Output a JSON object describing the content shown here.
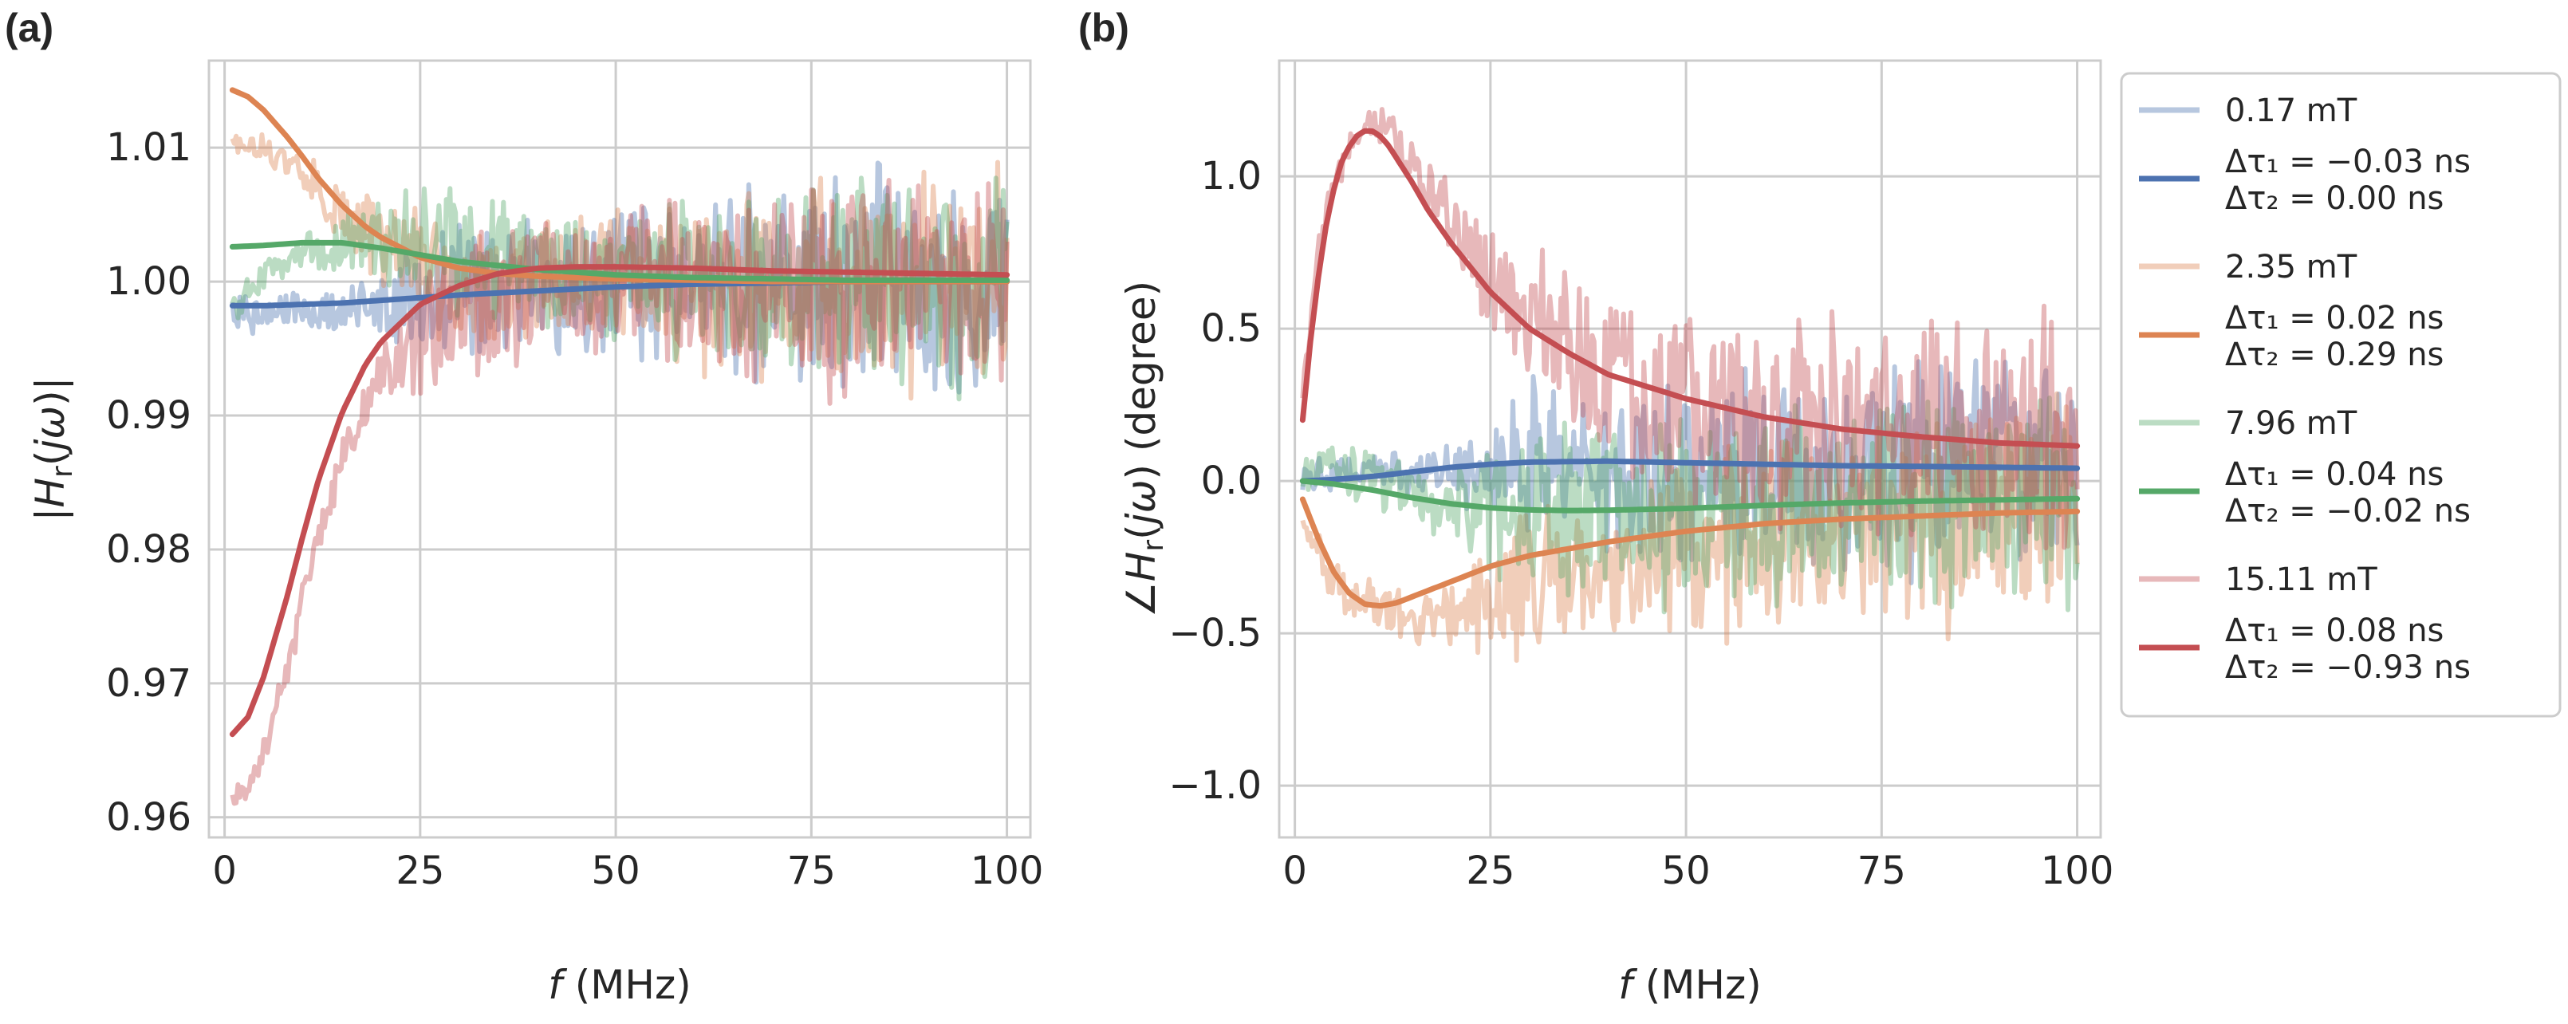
{
  "colors": {
    "blue": "#4c72b0",
    "orange": "#dd8452",
    "green": "#55a868",
    "red": "#c44e52",
    "grid": "#cccccc",
    "spine": "#cccccc"
  },
  "chart_data": [
    {
      "type": "line",
      "panel": "(a)",
      "xlabel": "f (MHz)",
      "ylabel": "|H_r(jω)|",
      "xlim": [
        -2,
        103
      ],
      "ylim": [
        0.9585,
        1.0165
      ],
      "xticks": [
        0,
        25,
        50,
        75,
        100
      ],
      "xtick_labels": [
        "0",
        "25",
        "50",
        "75",
        "100"
      ],
      "yticks": [
        0.96,
        0.97,
        0.98,
        0.99,
        1.0,
        1.01
      ],
      "ytick_labels": [
        "0.96",
        "0.97",
        "0.98",
        "0.99",
        "1.00",
        "1.01"
      ],
      "grid": true,
      "series": [
        {
          "name": "0.17 mT",
          "kind": "measured",
          "color": "blue",
          "x": [
            1,
            5,
            10,
            15,
            20,
            25,
            30,
            40,
            50,
            60,
            70,
            80,
            90,
            100
          ],
          "y": [
            0.998,
            0.9975,
            0.9978,
            0.998,
            0.998,
            0.999,
            0.999,
            0.9995,
            0.9998,
            1.0,
            1.0,
            1.0,
            1.0,
            1.0
          ],
          "noise": [
            0.0015,
            0.0015,
            0.0015,
            0.0015,
            0.002,
            0.0045,
            0.005,
            0.005,
            0.005,
            0.006,
            0.007,
            0.008,
            0.008,
            0.008
          ]
        },
        {
          "name": "Δτ₁ = −0.03 ns / Δτ₂ = 0.00 ns",
          "kind": "fit",
          "color": "blue",
          "x": [
            1,
            5,
            10,
            15,
            20,
            25,
            30,
            40,
            50,
            60,
            70,
            80,
            90,
            100
          ],
          "y": [
            0.9982,
            0.9982,
            0.9983,
            0.9984,
            0.9986,
            0.9988,
            0.999,
            0.9993,
            0.9996,
            0.9998,
            0.9999,
            1.0,
            1.0,
            1.0
          ]
        },
        {
          "name": "2.35 mT",
          "kind": "measured",
          "color": "orange",
          "x": [
            1,
            5,
            10,
            15,
            20,
            25,
            30,
            40,
            50,
            60,
            70,
            80,
            90,
            100
          ],
          "y": [
            1.0105,
            1.01,
            1.008,
            1.005,
            1.003,
            1.001,
            1.0,
            1.0,
            1.0,
            1.0,
            1.0,
            1.0,
            1.0,
            1.0
          ],
          "noise": [
            0.0008,
            0.001,
            0.0015,
            0.002,
            0.003,
            0.0045,
            0.005,
            0.005,
            0.005,
            0.006,
            0.007,
            0.008,
            0.008,
            0.008
          ]
        },
        {
          "name": "Δτ₁ = 0.02 ns / Δτ₂ = 0.29 ns",
          "kind": "fit",
          "color": "orange",
          "x": [
            1,
            3,
            5,
            8,
            10,
            12,
            15,
            18,
            20,
            25,
            30,
            35,
            40,
            50,
            60,
            70,
            80,
            90,
            100
          ],
          "y": [
            1.0143,
            1.0138,
            1.0128,
            1.0108,
            1.0093,
            1.0077,
            1.0057,
            1.0041,
            1.0033,
            1.0018,
            1.001,
            1.0006,
            1.0004,
            1.0002,
            1.0001,
            1.0,
            1.0,
            1.0,
            1.0
          ]
        },
        {
          "name": "7.96 mT",
          "kind": "measured",
          "color": "green",
          "x": [
            1,
            5,
            10,
            15,
            20,
            25,
            30,
            40,
            50,
            60,
            70,
            80,
            90,
            100
          ],
          "y": [
            0.998,
            1.0005,
            1.002,
            1.003,
            1.003,
            1.0025,
            1.002,
            1.001,
            1.0,
            1.0,
            1.0,
            1.0,
            1.0,
            1.0
          ],
          "noise": [
            0.0012,
            0.0012,
            0.0015,
            0.002,
            0.003,
            0.004,
            0.005,
            0.005,
            0.005,
            0.006,
            0.007,
            0.008,
            0.008,
            0.008
          ]
        },
        {
          "name": "Δτ₁ = 0.04 ns / Δτ₂ = −0.02 ns",
          "kind": "fit",
          "color": "green",
          "x": [
            1,
            5,
            10,
            15,
            20,
            25,
            30,
            40,
            50,
            60,
            70,
            80,
            90,
            100
          ],
          "y": [
            1.0026,
            1.0027,
            1.0029,
            1.0029,
            1.0025,
            1.002,
            1.0015,
            1.0009,
            1.0005,
            1.0003,
            1.0002,
            1.0001,
            1.0001,
            1.0001
          ]
        },
        {
          "name": "15.11 mT",
          "kind": "measured",
          "color": "red",
          "x": [
            1,
            3,
            5,
            8,
            10,
            12,
            15,
            20,
            25,
            30,
            40,
            50,
            60,
            70,
            80,
            90,
            100
          ],
          "y": [
            0.9615,
            0.962,
            0.965,
            0.971,
            0.976,
            0.981,
            0.987,
            0.993,
            0.996,
            0.998,
            0.9995,
            1.0,
            1.0,
            1.0,
            1.0,
            1.0,
            1.0
          ],
          "noise": [
            0.0008,
            0.001,
            0.001,
            0.0012,
            0.0015,
            0.0015,
            0.0018,
            0.002,
            0.0045,
            0.005,
            0.005,
            0.005,
            0.006,
            0.007,
            0.008,
            0.008,
            0.008
          ]
        },
        {
          "name": "Δτ₁ = 0.08 ns / Δτ₂ = −0.93 ns",
          "kind": "fit",
          "color": "red",
          "x": [
            1,
            3,
            5,
            8,
            10,
            12,
            15,
            18,
            20,
            25,
            30,
            35,
            40,
            45,
            50,
            60,
            70,
            80,
            90,
            100
          ],
          "y": [
            0.9662,
            0.9675,
            0.9705,
            0.9765,
            0.981,
            0.9852,
            0.9902,
            0.9938,
            0.9955,
            0.9983,
            0.9997,
            1.0006,
            1.001,
            1.0011,
            1.0011,
            1.001,
            1.0008,
            1.0007,
            1.0006,
            1.0005
          ]
        }
      ]
    },
    {
      "type": "line",
      "panel": "(b)",
      "xlabel": "f (MHz)",
      "ylabel": "∠H_r(jω) (degree)",
      "xlim": [
        -2,
        103
      ],
      "ylim": [
        -1.17,
        1.38
      ],
      "xticks": [
        0,
        25,
        50,
        75,
        100
      ],
      "xtick_labels": [
        "0",
        "25",
        "50",
        "75",
        "100"
      ],
      "yticks": [
        -1.0,
        -0.5,
        0.0,
        0.5,
        1.0
      ],
      "ytick_labels": [
        "−1.0",
        "−0.5",
        "0.0",
        "0.5",
        "1.0"
      ],
      "grid": true,
      "series": [
        {
          "name": "0.17 mT",
          "kind": "measured",
          "color": "blue",
          "x": [
            1,
            5,
            10,
            15,
            20,
            25,
            30,
            40,
            50,
            60,
            70,
            80,
            90,
            100
          ],
          "y": [
            0.02,
            0.04,
            0.03,
            0.03,
            0.04,
            0.05,
            0.06,
            0.06,
            0.05,
            0.05,
            0.05,
            0.05,
            0.05,
            0.05
          ],
          "noise": [
            0.05,
            0.06,
            0.06,
            0.07,
            0.08,
            0.2,
            0.25,
            0.28,
            0.3,
            0.3,
            0.32,
            0.35,
            0.35,
            0.35
          ]
        },
        {
          "name": "Δτ₁ = −0.03 ns / Δτ₂ = 0.00 ns",
          "kind": "fit",
          "color": "blue",
          "x": [
            1,
            5,
            10,
            15,
            20,
            25,
            30,
            40,
            50,
            60,
            70,
            80,
            90,
            100
          ],
          "y": [
            0.0,
            0.005,
            0.015,
            0.03,
            0.045,
            0.055,
            0.062,
            0.065,
            0.06,
            0.055,
            0.05,
            0.048,
            0.045,
            0.042
          ]
        },
        {
          "name": "2.35 mT",
          "kind": "measured",
          "color": "orange",
          "x": [
            1,
            5,
            10,
            15,
            20,
            25,
            30,
            40,
            50,
            60,
            70,
            80,
            90,
            100
          ],
          "y": [
            -0.1,
            -0.35,
            -0.4,
            -0.45,
            -0.45,
            -0.4,
            -0.35,
            -0.3,
            -0.25,
            -0.2,
            -0.15,
            -0.12,
            -0.1,
            -0.1
          ],
          "noise": [
            0.05,
            0.08,
            0.08,
            0.08,
            0.1,
            0.2,
            0.25,
            0.28,
            0.3,
            0.3,
            0.32,
            0.35,
            0.35,
            0.35
          ]
        },
        {
          "name": "Δτ₁ = 0.02 ns / Δτ₂ = 0.29 ns",
          "kind": "fit",
          "color": "orange",
          "x": [
            1,
            3,
            5,
            7,
            9,
            11,
            13,
            15,
            18,
            20,
            25,
            30,
            40,
            50,
            60,
            70,
            80,
            90,
            100
          ],
          "y": [
            -0.06,
            -0.19,
            -0.3,
            -0.37,
            -0.405,
            -0.41,
            -0.4,
            -0.38,
            -0.35,
            -0.33,
            -0.28,
            -0.245,
            -0.2,
            -0.165,
            -0.14,
            -0.125,
            -0.115,
            -0.105,
            -0.1
          ]
        },
        {
          "name": "7.96 mT",
          "kind": "measured",
          "color": "green",
          "x": [
            1,
            5,
            10,
            15,
            20,
            25,
            30,
            40,
            50,
            60,
            70,
            80,
            90,
            100
          ],
          "y": [
            0.02,
            0.05,
            0.0,
            -0.05,
            -0.08,
            -0.1,
            -0.1,
            -0.1,
            -0.1,
            -0.08,
            -0.07,
            -0.06,
            -0.05,
            -0.05
          ],
          "noise": [
            0.05,
            0.08,
            0.1,
            0.1,
            0.12,
            0.2,
            0.25,
            0.28,
            0.3,
            0.3,
            0.32,
            0.35,
            0.35,
            0.35
          ]
        },
        {
          "name": "Δτ₁ = 0.04 ns / Δτ₂ = −0.02 ns",
          "kind": "fit",
          "color": "green",
          "x": [
            1,
            5,
            10,
            15,
            20,
            25,
            30,
            35,
            40,
            50,
            60,
            70,
            80,
            90,
            100
          ],
          "y": [
            0.0,
            -0.01,
            -0.03,
            -0.055,
            -0.075,
            -0.088,
            -0.095,
            -0.097,
            -0.096,
            -0.09,
            -0.08,
            -0.072,
            -0.066,
            -0.062,
            -0.058
          ]
        },
        {
          "name": "15.11 mT",
          "kind": "measured",
          "color": "red",
          "x": [
            1,
            3,
            5,
            8,
            10,
            12,
            15,
            18,
            20,
            25,
            30,
            40,
            50,
            60,
            70,
            80,
            90,
            100
          ],
          "y": [
            0.3,
            0.75,
            1.0,
            1.15,
            1.18,
            1.15,
            1.05,
            0.95,
            0.85,
            0.65,
            0.5,
            0.35,
            0.25,
            0.2,
            0.2,
            0.2,
            0.15,
            0.12
          ],
          "noise": [
            0.03,
            0.05,
            0.06,
            0.06,
            0.06,
            0.06,
            0.08,
            0.1,
            0.12,
            0.2,
            0.25,
            0.28,
            0.3,
            0.32,
            0.35,
            0.38,
            0.38,
            0.38
          ]
        },
        {
          "name": "Δτ₁ = 0.08 ns / Δτ₂ = −0.93 ns",
          "kind": "fit",
          "color": "red",
          "x": [
            1,
            2,
            3,
            4,
            5,
            6,
            7,
            8,
            9,
            10,
            11,
            12,
            13,
            15,
            17,
            20,
            25,
            30,
            35,
            40,
            50,
            60,
            70,
            80,
            90,
            100
          ],
          "y": [
            0.2,
            0.46,
            0.67,
            0.84,
            0.96,
            1.05,
            1.1,
            1.135,
            1.15,
            1.148,
            1.13,
            1.1,
            1.06,
            0.98,
            0.89,
            0.78,
            0.62,
            0.5,
            0.42,
            0.35,
            0.27,
            0.21,
            0.17,
            0.145,
            0.125,
            0.115
          ]
        }
      ]
    }
  ],
  "legend": {
    "placement": "right",
    "entries": [
      {
        "label": "0.17 mT",
        "color": "blue",
        "alpha": "light"
      },
      {
        "label": "Δτ₁ = −0.03 ns",
        "label2": "Δτ₂ = 0.00 ns",
        "color": "blue",
        "alpha": "solid"
      },
      {
        "label": "2.35 mT",
        "color": "orange",
        "alpha": "light"
      },
      {
        "label": "Δτ₁ = 0.02 ns",
        "label2": "Δτ₂ = 0.29 ns",
        "color": "orange",
        "alpha": "solid"
      },
      {
        "label": "7.96 mT",
        "color": "green",
        "alpha": "light"
      },
      {
        "label": "Δτ₁ = 0.04 ns",
        "label2": "Δτ₂ = −0.02 ns",
        "color": "green",
        "alpha": "solid"
      },
      {
        "label": "15.11 mT",
        "color": "red",
        "alpha": "light"
      },
      {
        "label": "Δτ₁ = 0.08 ns",
        "label2": "Δτ₂ = −0.93 ns",
        "color": "red",
        "alpha": "solid"
      }
    ]
  }
}
